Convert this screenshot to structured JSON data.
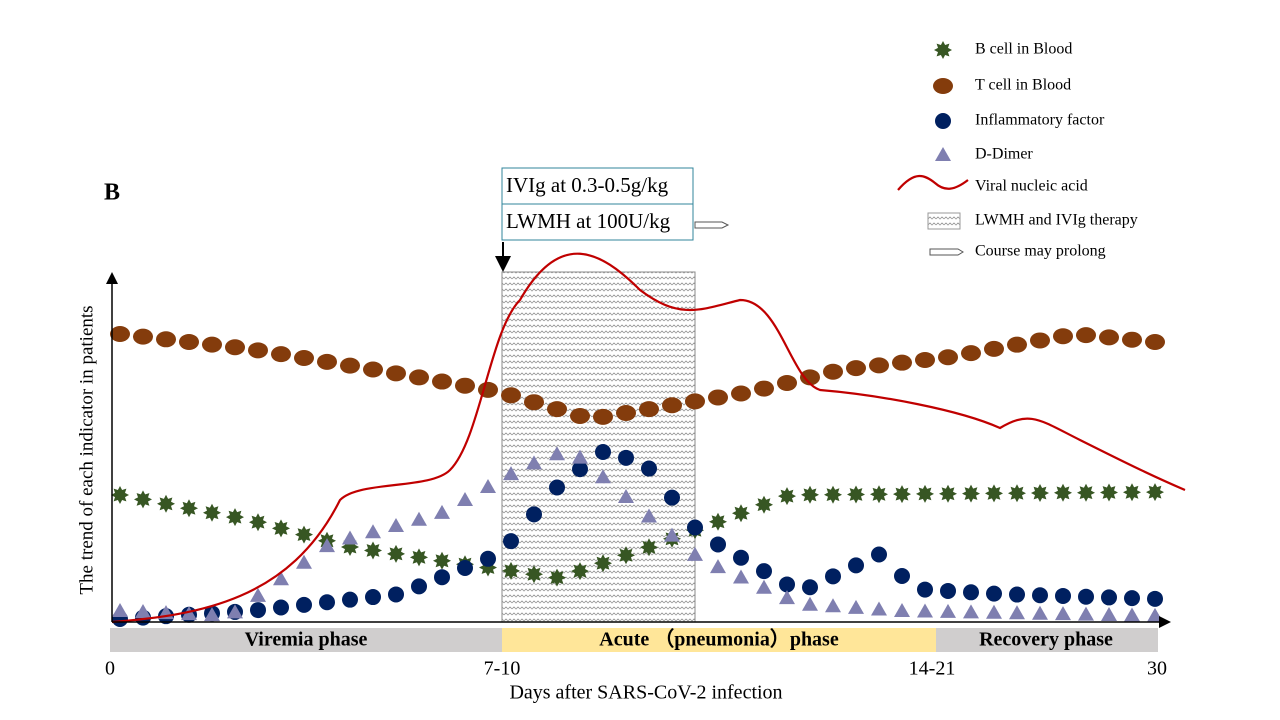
{
  "panel_label": "B",
  "legend": [
    "B cell in Blood",
    "T cell in Blood",
    "Inflammatory  factor",
    "D-Dimer",
    "Viral nucleic acid",
    "LWMH and IVIg therapy",
    "Course may prolong"
  ],
  "annotations": [
    "IVIg at 0.3-0.5g/kg",
    "LWMH at 100U/kg"
  ],
  "y_axis_label": "The trend of each indicator in patients",
  "x_axis_label": "Days after SARS-CoV-2  infection",
  "x_ticks": [
    "0",
    "7-10",
    "14-21",
    "30"
  ],
  "phases": [
    "Viremia  phase",
    "Acute （pneumonia）phase",
    "Recovery phase"
  ]
}
